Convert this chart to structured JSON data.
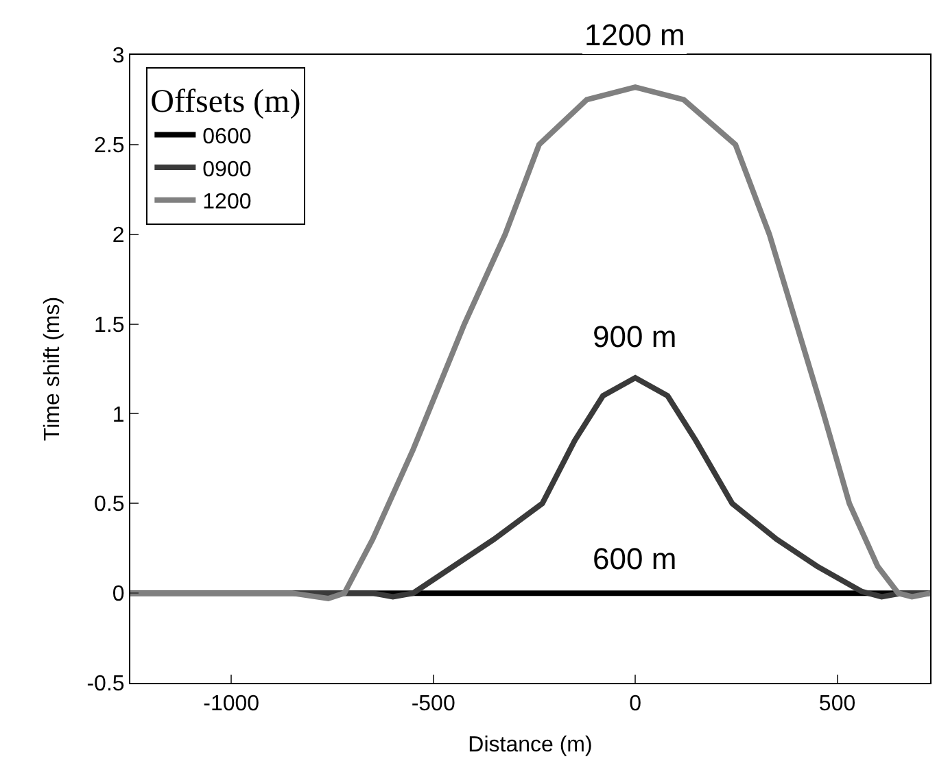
{
  "chart_data": {
    "type": "line",
    "xlabel": "Distance (m)",
    "ylabel": "Time shift (ms)",
    "legend_title": "Offsets (m)",
    "xlim": [
      -1250,
      730
    ],
    "ylim": [
      -0.5,
      3
    ],
    "xticks": [
      -1000,
      -500,
      0,
      500
    ],
    "yticks": [
      -0.5,
      0,
      0.5,
      1,
      1.5,
      2,
      2.5,
      3
    ],
    "legend": "top left",
    "line_style": "solid",
    "marker": "none",
    "series": [
      {
        "name": "0600",
        "color": "#000000",
        "x": [
          -1250,
          730
        ],
        "values": [
          0,
          0
        ]
      },
      {
        "name": "0900",
        "color": "#3a3a3a",
        "x": [
          -1250,
          -650,
          -600,
          -550,
          -450,
          -350,
          -230,
          -150,
          -80,
          0,
          80,
          150,
          240,
          350,
          450,
          560,
          610,
          660,
          730
        ],
        "values": [
          0,
          0,
          -0.02,
          0,
          0.15,
          0.3,
          0.5,
          0.85,
          1.1,
          1.2,
          1.1,
          0.85,
          0.5,
          0.3,
          0.15,
          0.01,
          -0.02,
          0,
          0
        ]
      },
      {
        "name": "1200",
        "color": "#808080",
        "x": [
          -1250,
          -850,
          -760,
          -720,
          -650,
          -550,
          -423,
          -322,
          -238,
          -120,
          0,
          120,
          248,
          332,
          399,
          466,
          530,
          600,
          651,
          685,
          730
        ],
        "values": [
          0,
          0,
          -0.03,
          0,
          0.3,
          0.8,
          1.5,
          2.0,
          2.5,
          2.75,
          2.82,
          2.75,
          2.5,
          2.0,
          1.5,
          1.0,
          0.5,
          0.15,
          0,
          -0.02,
          0
        ]
      }
    ],
    "annotations": [
      "1200 m",
      "900 m",
      "600 m"
    ]
  }
}
